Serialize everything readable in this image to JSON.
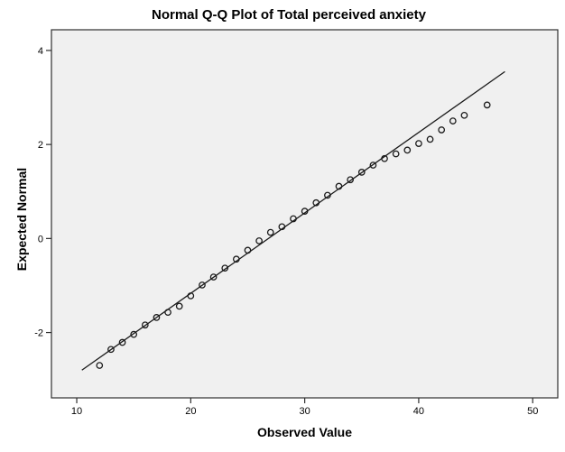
{
  "chart_data": {
    "type": "scatter",
    "title": "Normal Q-Q Plot of Total perceived anxiety",
    "xlabel": "Observed Value",
    "ylabel": "Expected Normal",
    "xlim": [
      7.78,
      52.2
    ],
    "ylim": [
      -3.39,
      4.44
    ],
    "x_ticks": [
      10,
      20,
      30,
      40,
      50
    ],
    "y_ticks": [
      -2,
      0,
      2,
      4
    ],
    "grid": false,
    "legend": "none",
    "marker_style": "open-circle",
    "points": [
      [
        12,
        -2.7
      ],
      [
        13,
        -2.36
      ],
      [
        14,
        -2.21
      ],
      [
        15,
        -2.04
      ],
      [
        16,
        -1.84
      ],
      [
        17,
        -1.68
      ],
      [
        18,
        -1.57
      ],
      [
        19,
        -1.44
      ],
      [
        20,
        -1.22
      ],
      [
        21,
        -0.99
      ],
      [
        22,
        -0.82
      ],
      [
        23,
        -0.63
      ],
      [
        24,
        -0.44
      ],
      [
        25,
        -0.25
      ],
      [
        26,
        -0.05
      ],
      [
        27,
        0.13
      ],
      [
        28,
        0.25
      ],
      [
        29,
        0.42
      ],
      [
        30,
        0.58
      ],
      [
        31,
        0.76
      ],
      [
        32,
        0.92
      ],
      [
        33,
        1.11
      ],
      [
        34,
        1.25
      ],
      [
        35,
        1.41
      ],
      [
        36,
        1.56
      ],
      [
        37,
        1.7
      ],
      [
        38,
        1.8
      ],
      [
        39,
        1.88
      ],
      [
        40,
        2.02
      ],
      [
        41,
        2.11
      ],
      [
        42,
        2.31
      ],
      [
        43,
        2.5
      ],
      [
        44,
        2.62
      ],
      [
        46,
        2.84
      ]
    ],
    "reference_line": {
      "x1": 10.45,
      "y1": -2.8,
      "x2": 47.56,
      "y2": 3.55
    },
    "colors": {
      "plot_background": "#f0f0f0",
      "frame": "#2e2e2e",
      "marker": "#1a1a1a",
      "line": "#1a1a1a",
      "text": "#000000"
    }
  }
}
